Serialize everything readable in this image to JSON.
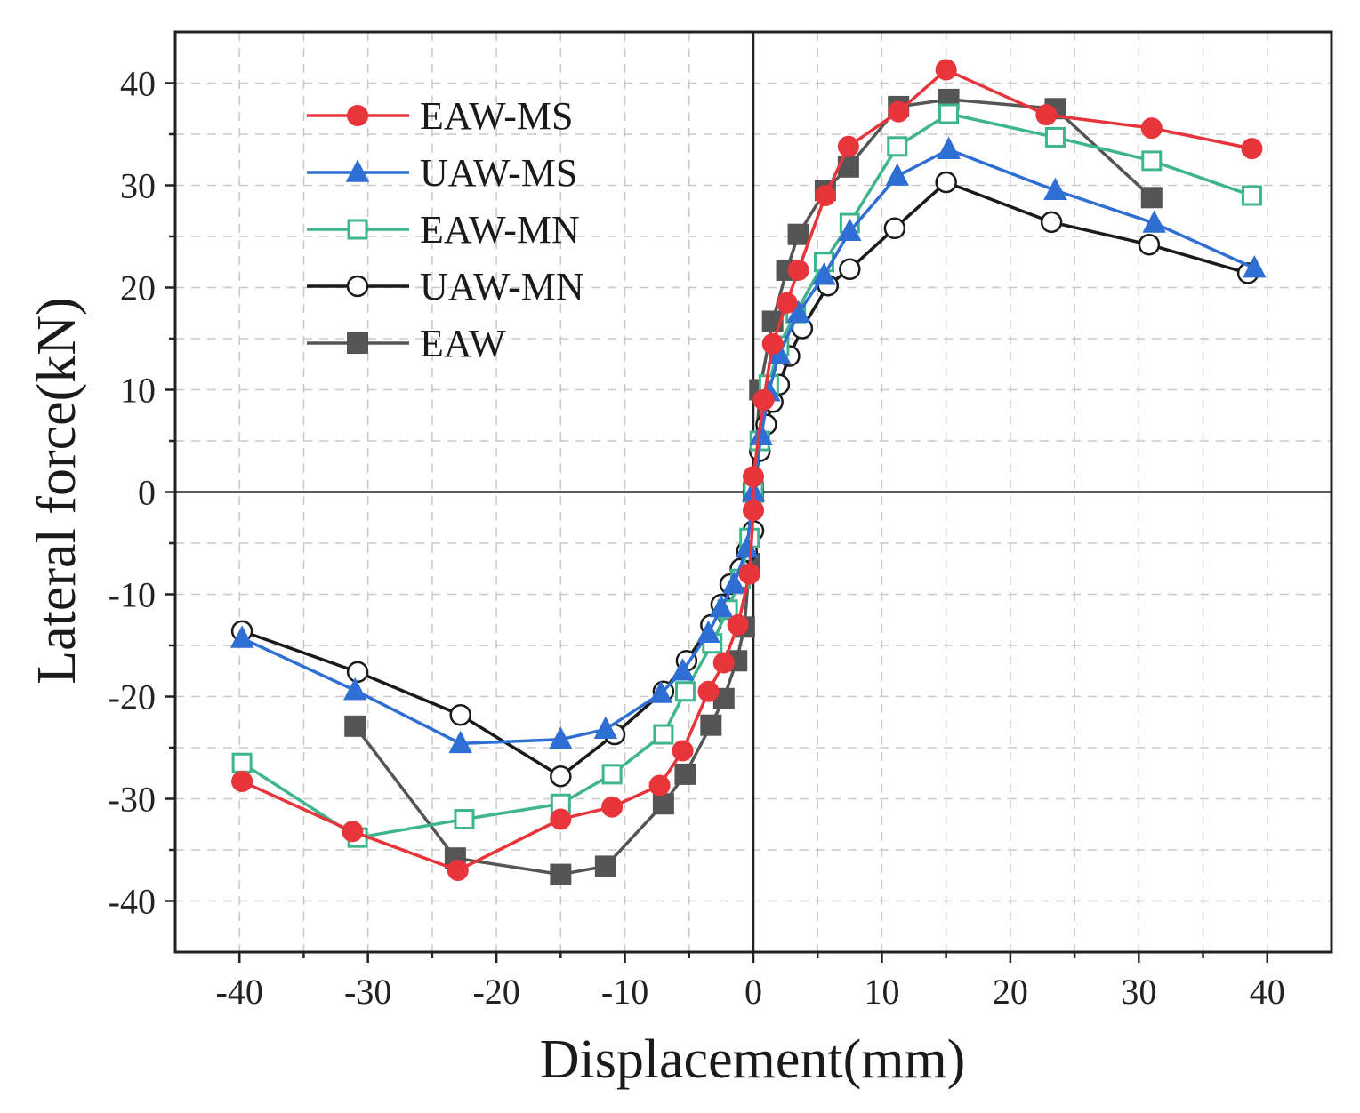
{
  "chart_data": {
    "type": "line",
    "title": "",
    "xlabel": "Displacement(mm)",
    "ylabel": "Lateral force(kN)",
    "xlim": [
      -45,
      45
    ],
    "ylim": [
      -45,
      45
    ],
    "grid": true,
    "legend_position": "top-left",
    "x_ticks": [
      -40,
      -30,
      -20,
      -10,
      0,
      10,
      20,
      30,
      40
    ],
    "y_ticks": [
      -40,
      -30,
      -20,
      -10,
      0,
      10,
      20,
      30,
      40
    ],
    "series": [
      {
        "name": "EAW-MS",
        "color": "#e8353b",
        "marker": "circle-filled",
        "points": [
          [
            -39.8,
            -28.3
          ],
          [
            -31.2,
            -33.2
          ],
          [
            -23,
            -37
          ],
          [
            -15,
            -32
          ],
          [
            -11,
            -30.8
          ],
          [
            -7.3,
            -28.7
          ],
          [
            -5.5,
            -25.3
          ],
          [
            -3.5,
            -19.5
          ],
          [
            -2.3,
            -16.7
          ],
          [
            -1.2,
            -13
          ],
          [
            -0.3,
            -8
          ],
          [
            0,
            -1.8
          ],
          [
            0,
            1.5
          ],
          [
            0.8,
            9
          ],
          [
            1.5,
            14.5
          ],
          [
            2.6,
            18.5
          ],
          [
            3.5,
            21.7
          ],
          [
            5.6,
            29
          ],
          [
            7.4,
            33.8
          ],
          [
            11.3,
            37.2
          ],
          [
            15,
            41.3
          ],
          [
            22.8,
            36.9
          ],
          [
            31,
            35.6
          ],
          [
            38.8,
            33.6
          ]
        ]
      },
      {
        "name": "UAW-MS",
        "color": "#2f6fd4",
        "marker": "triangle-filled",
        "points": [
          [
            -39.8,
            -14.3
          ],
          [
            -31,
            -19.4
          ],
          [
            -22.8,
            -24.6
          ],
          [
            -15,
            -24.2
          ],
          [
            -11.5,
            -23.2
          ],
          [
            -7.2,
            -19.7
          ],
          [
            -5.5,
            -17.5
          ],
          [
            -3.5,
            -13.8
          ],
          [
            -2.5,
            -11.3
          ],
          [
            -1.5,
            -9
          ],
          [
            -0.5,
            -5.5
          ],
          [
            0,
            0
          ],
          [
            0.6,
            5.5
          ],
          [
            1.2,
            9.8
          ],
          [
            2,
            13.5
          ],
          [
            3.5,
            17.5
          ],
          [
            5.5,
            21.2
          ],
          [
            7.5,
            25.5
          ],
          [
            11.2,
            30.9
          ],
          [
            15.2,
            33.5
          ],
          [
            23.5,
            29.5
          ],
          [
            31.2,
            26.3
          ],
          [
            39,
            21.9
          ]
        ]
      },
      {
        "name": "EAW-MN",
        "color": "#3fb58e",
        "marker": "square-open",
        "points": [
          [
            -39.8,
            -26.5
          ],
          [
            -30.8,
            -33.8
          ],
          [
            -22.5,
            -32
          ],
          [
            -15,
            -30.5
          ],
          [
            -11,
            -27.6
          ],
          [
            -7,
            -23.7
          ],
          [
            -5.3,
            -19.5
          ],
          [
            -3.2,
            -14.8
          ],
          [
            -2,
            -11.5
          ],
          [
            -1,
            -8.5
          ],
          [
            -0.3,
            -4.5
          ],
          [
            0,
            0
          ],
          [
            0.5,
            5
          ],
          [
            1.2,
            10.5
          ],
          [
            2,
            14.3
          ],
          [
            3.3,
            17.5
          ],
          [
            5.5,
            22.5
          ],
          [
            7.5,
            26.3
          ],
          [
            11.2,
            33.8
          ],
          [
            15.2,
            37
          ],
          [
            23.5,
            34.7
          ],
          [
            31,
            32.4
          ],
          [
            38.8,
            29
          ]
        ]
      },
      {
        "name": "UAW-MN",
        "color": "#1a1a1a",
        "marker": "circle-open",
        "points": [
          [
            -39.8,
            -13.6
          ],
          [
            -30.8,
            -17.6
          ],
          [
            -22.8,
            -21.8
          ],
          [
            -15,
            -27.8
          ],
          [
            -10.8,
            -23.7
          ],
          [
            -7,
            -19.5
          ],
          [
            -5.2,
            -16.5
          ],
          [
            -3.3,
            -13
          ],
          [
            -2.5,
            -11
          ],
          [
            -1.8,
            -9
          ],
          [
            -1,
            -7.5
          ],
          [
            -0.5,
            -5.8
          ],
          [
            0,
            -3.8
          ],
          [
            0,
            0
          ],
          [
            0.5,
            4
          ],
          [
            1,
            6.6
          ],
          [
            1.5,
            8.8
          ],
          [
            2,
            10.5
          ],
          [
            2.8,
            13.3
          ],
          [
            3.8,
            16
          ],
          [
            5.8,
            20.2
          ],
          [
            7.5,
            21.8
          ],
          [
            11,
            25.8
          ],
          [
            15,
            30.3
          ],
          [
            23.2,
            26.4
          ],
          [
            30.8,
            24.2
          ],
          [
            38.5,
            21.4
          ]
        ]
      },
      {
        "name": "EAW",
        "color": "#555555",
        "marker": "square-filled",
        "points": [
          [
            -31,
            -22.9
          ],
          [
            -23.2,
            -35.8
          ],
          [
            -15,
            -37.4
          ],
          [
            -11.5,
            -36.6
          ],
          [
            -7,
            -30.5
          ],
          [
            -5.3,
            -27.6
          ],
          [
            -3.3,
            -22.8
          ],
          [
            -2.3,
            -20.2
          ],
          [
            -1.3,
            -16.5
          ],
          [
            -0.7,
            -13.2
          ],
          [
            -0.3,
            -7
          ],
          [
            0,
            0
          ],
          [
            0.5,
            10
          ],
          [
            1.5,
            16.7
          ],
          [
            2.6,
            21.7
          ],
          [
            3.5,
            25.2
          ],
          [
            5.6,
            29.5
          ],
          [
            7.4,
            31.8
          ],
          [
            11.3,
            37.7
          ],
          [
            15.2,
            38.4
          ],
          [
            23.5,
            37.5
          ],
          [
            31,
            28.8
          ]
        ]
      }
    ]
  }
}
